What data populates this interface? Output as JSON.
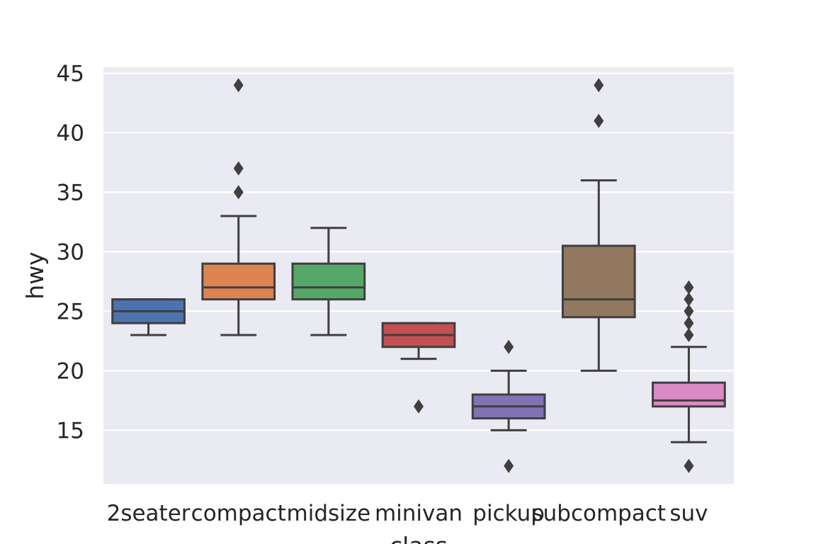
{
  "chart_data": {
    "type": "box",
    "xlabel": "class",
    "ylabel": "hwy",
    "ylim": [
      10.5,
      45.5
    ],
    "yticks": [
      15,
      20,
      25,
      30,
      35,
      40,
      45
    ],
    "grid": true,
    "categories": [
      "2seater",
      "compact",
      "midsize",
      "minivan",
      "pickup",
      "subcompact",
      "suv"
    ],
    "boxes": [
      {
        "category": "2seater",
        "whisker_low": 23,
        "q1": 24,
        "median": 25,
        "q3": 26,
        "whisker_high": 26,
        "outliers": []
      },
      {
        "category": "compact",
        "whisker_low": 23,
        "q1": 26,
        "median": 27,
        "q3": 29,
        "whisker_high": 33,
        "outliers": [
          35,
          37,
          44
        ]
      },
      {
        "category": "midsize",
        "whisker_low": 23,
        "q1": 26,
        "median": 27,
        "q3": 29,
        "whisker_high": 32,
        "outliers": []
      },
      {
        "category": "minivan",
        "whisker_low": 21,
        "q1": 22,
        "median": 23,
        "q3": 24,
        "whisker_high": 24,
        "outliers": [
          17
        ]
      },
      {
        "category": "pickup",
        "whisker_low": 15,
        "q1": 16,
        "median": 17,
        "q3": 18,
        "whisker_high": 20,
        "outliers": [
          12,
          22
        ]
      },
      {
        "category": "subcompact",
        "whisker_low": 20,
        "q1": 24.5,
        "median": 26,
        "q3": 30.5,
        "whisker_high": 36,
        "outliers": [
          41,
          44
        ]
      },
      {
        "category": "suv",
        "whisker_low": 14,
        "q1": 17,
        "median": 17.5,
        "q3": 19,
        "whisker_high": 22,
        "outliers": [
          12,
          23,
          24,
          25,
          26,
          27
        ]
      }
    ],
    "colors": [
      "#4c72b0",
      "#dd8452",
      "#55a868",
      "#c44e52",
      "#8172b3",
      "#937860",
      "#da8bc3"
    ],
    "line_color": "#3f3f3f",
    "background_color": "#eaeaf2",
    "grid_color": "#ffffff"
  }
}
